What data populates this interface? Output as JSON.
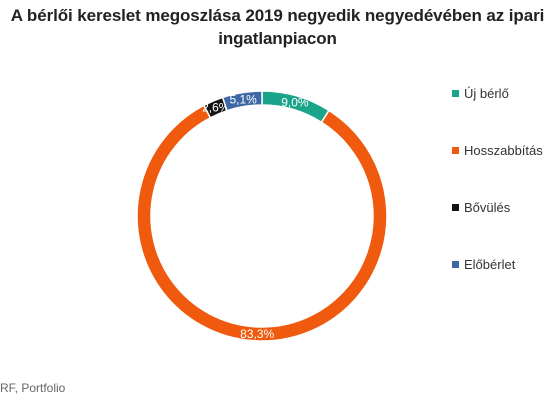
{
  "title_line1": "A bérlői kereslet megoszlása 2019 negyedik negyedévében az ipari",
  "title_line2": "ingatlanpiacon",
  "source": "RF, Portfolio",
  "colors": {
    "uj_berlo": "#1aa58a",
    "hosszabbitas": "#f05a0f",
    "bovules": "#141414",
    "eloberlet": "#3d68a6"
  },
  "chart_data": {
    "type": "pie",
    "title": "A bérlői kereslet megoszlása 2019 negyedik negyedévében az ipari ingatlanpiacon",
    "categories": [
      "Új bérlő",
      "Hosszabbítás",
      "Bővülés",
      "Előbérlet"
    ],
    "values": [
      9.0,
      83.3,
      2.6,
      5.1
    ],
    "labels": [
      "9,0%",
      "83,3%",
      "2,6%",
      "5,1%"
    ],
    "colors": [
      "#1aa58a",
      "#f05a0f",
      "#141414",
      "#3d68a6"
    ],
    "legend": "right",
    "donut": true
  }
}
